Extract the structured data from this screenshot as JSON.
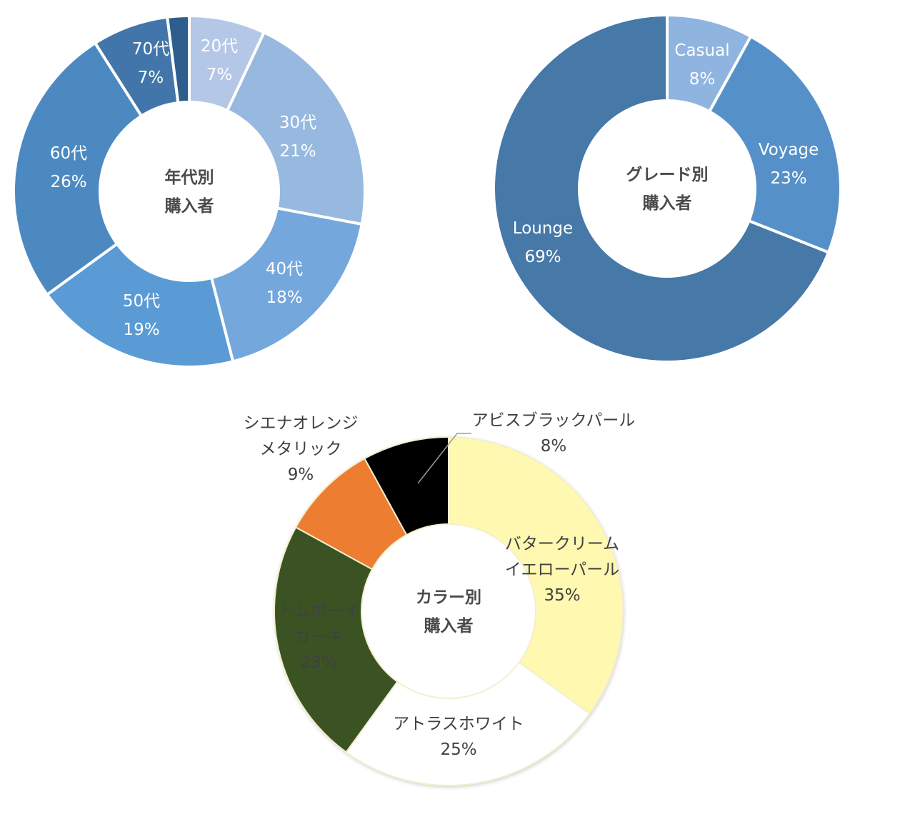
{
  "chart_data": [
    {
      "type": "pie",
      "variant": "donut",
      "center_title": [
        "年代別",
        "購入者"
      ],
      "slices": [
        {
          "label": "20代",
          "value": 7,
          "value_label": "7%",
          "color": "#b4c7e7"
        },
        {
          "label": "30代",
          "value": 21,
          "value_label": "21%",
          "color": "#97b9e0"
        },
        {
          "label": "40代",
          "value": 18,
          "value_label": "18%",
          "color": "#74a7dc"
        },
        {
          "label": "50代",
          "value": 19,
          "value_label": "19%",
          "color": "#5b9bd5"
        },
        {
          "label": "60代",
          "value": 26,
          "value_label": "26%",
          "color": "#4c89c1"
        },
        {
          "label": "70代",
          "value": 7,
          "value_label": "7%",
          "color": "#4275a9"
        },
        {
          "label": "",
          "value": 2,
          "value_label": "",
          "color": "#2e5e8e"
        }
      ],
      "label_color": "#ffffff"
    },
    {
      "type": "pie",
      "variant": "donut",
      "center_title": [
        "グレード別",
        "購入者"
      ],
      "slices": [
        {
          "label": "Casual",
          "value": 8,
          "value_label": "8%",
          "color": "#8fb4e0"
        },
        {
          "label": "Voyage",
          "value": 23,
          "value_label": "23%",
          "color": "#5591c8"
        },
        {
          "label": "Lounge",
          "value": 69,
          "value_label": "69%",
          "color": "#4678a8"
        }
      ],
      "label_color": "#ffffff"
    },
    {
      "type": "pie",
      "variant": "donut",
      "center_title": [
        "カラー別",
        "購入者"
      ],
      "slices": [
        {
          "label": "バタークリーム イエローパール",
          "value": 35,
          "value_label": "35%",
          "color": "#fff8b0"
        },
        {
          "label": "アトラスホワイト",
          "value": 25,
          "value_label": "25%",
          "color": "#ffffff"
        },
        {
          "label": "トムボーイ カーキ",
          "value": 23,
          "value_label": "23%",
          "color": "#3b5323"
        },
        {
          "label": "シエナオレンジ メタリック",
          "value": 9,
          "value_label": "9%",
          "color": "#ed7d31"
        },
        {
          "label": "アビスブラックパール",
          "value": 8,
          "value_label": "8%",
          "color": "#000000"
        }
      ],
      "label_color": "#404040"
    }
  ],
  "labels": {
    "age": [
      {
        "lines": [
          "20代",
          "7%"
        ]
      },
      {
        "lines": [
          "30代",
          "21%"
        ]
      },
      {
        "lines": [
          "40代",
          "18%"
        ]
      },
      {
        "lines": [
          "50代",
          "19%"
        ]
      },
      {
        "lines": [
          "60代",
          "26%"
        ]
      },
      {
        "lines": [
          "70代",
          "7%"
        ]
      }
    ],
    "grade": [
      {
        "lines": [
          "Casual",
          "8%"
        ]
      },
      {
        "lines": [
          "Voyage",
          "23%"
        ]
      },
      {
        "lines": [
          "Lounge",
          "69%"
        ]
      }
    ],
    "color": [
      {
        "lines": [
          "バタークリーム",
          "イエローパール",
          "35%"
        ]
      },
      {
        "lines": [
          "アトラスホワイト",
          "25%"
        ]
      },
      {
        "lines": [
          "トムボーイ",
          "カーキ",
          "23%"
        ]
      },
      {
        "lines": [
          "シエナオレンジ",
          "メタリック",
          "9%"
        ]
      },
      {
        "lines": [
          "アビスブラックパール",
          "8%"
        ]
      }
    ]
  }
}
